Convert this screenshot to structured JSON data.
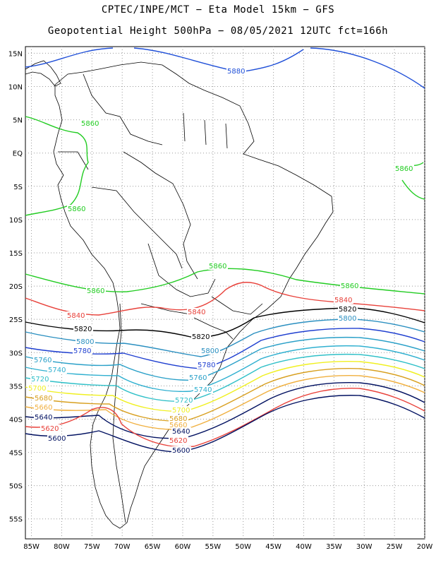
{
  "title": {
    "line1": "CPTEC/INPE/MCT −  Eta Model 15km − GFS",
    "line2": "Geopotential Height 500hPa − 08/05/2021 12UTC fct=166h"
  },
  "map": {
    "lon_range": [
      -86,
      -20
    ],
    "lat_range": [
      -58,
      16
    ],
    "lon_ticks": [
      "85W",
      "80W",
      "75W",
      "70W",
      "65W",
      "60W",
      "55W",
      "50W",
      "45W",
      "40W",
      "35W",
      "30W",
      "25W",
      "20W"
    ],
    "lat_ticks": [
      "15N",
      "10N",
      "5N",
      "EQ",
      "5S",
      "10S",
      "15S",
      "20S",
      "25S",
      "30S",
      "35S",
      "40S",
      "45S",
      "50S",
      "55S"
    ],
    "grid": "dotted",
    "colors": {
      "5880": "#1f4fd8",
      "5860": "#22cc22",
      "5840": "#e8413a",
      "5820": "#000000",
      "5800": "#2a8fc0",
      "5780": "#1f3fd0",
      "5760": "#2aa0c8",
      "5740": "#30b0d0",
      "5720": "#30c0c8",
      "5700": "#f0f020",
      "5680": "#d8a020",
      "5660": "#f0b040",
      "5640": "#001060",
      "5620": "#e8413a",
      "5600": "#001060"
    }
  },
  "contour_labels": [
    {
      "text": "5880",
      "color_key": "5880"
    },
    {
      "text": "5860",
      "color_key": "5860"
    },
    {
      "text": "5860",
      "color_key": "5860"
    },
    {
      "text": "5860",
      "color_key": "5860"
    },
    {
      "text": "5860",
      "color_key": "5860"
    },
    {
      "text": "5860",
      "color_key": "5860"
    },
    {
      "text": "5860",
      "color_key": "5860"
    },
    {
      "text": "5840",
      "color_key": "5840"
    },
    {
      "text": "5840",
      "color_key": "5840"
    },
    {
      "text": "5840",
      "color_key": "5840"
    },
    {
      "text": "5820",
      "color_key": "5820"
    },
    {
      "text": "5820",
      "color_key": "5820"
    },
    {
      "text": "5820",
      "color_key": "5820"
    },
    {
      "text": "5800",
      "color_key": "5800"
    },
    {
      "text": "5800",
      "color_key": "5800"
    },
    {
      "text": "5800",
      "color_key": "5800"
    },
    {
      "text": "5780",
      "color_key": "5780"
    },
    {
      "text": "5780",
      "color_key": "5780"
    },
    {
      "text": "5760",
      "color_key": "5760"
    },
    {
      "text": "5760",
      "color_key": "5760"
    },
    {
      "text": "5740",
      "color_key": "5740"
    },
    {
      "text": "5740",
      "color_key": "5740"
    },
    {
      "text": "5720",
      "color_key": "5720"
    },
    {
      "text": "5720",
      "color_key": "5720"
    },
    {
      "text": "5700",
      "color_key": "5700"
    },
    {
      "text": "5700",
      "color_key": "5700"
    },
    {
      "text": "5680",
      "color_key": "5680"
    },
    {
      "text": "5680",
      "color_key": "5680"
    },
    {
      "text": "5660",
      "color_key": "5660"
    },
    {
      "text": "5660",
      "color_key": "5660"
    },
    {
      "text": "5640",
      "color_key": "5640"
    },
    {
      "text": "5640",
      "color_key": "5640"
    },
    {
      "text": "5620",
      "color_key": "5620"
    },
    {
      "text": "5620",
      "color_key": "5620"
    },
    {
      "text": "5600",
      "color_key": "5600"
    },
    {
      "text": "5600",
      "color_key": "5600"
    }
  ]
}
